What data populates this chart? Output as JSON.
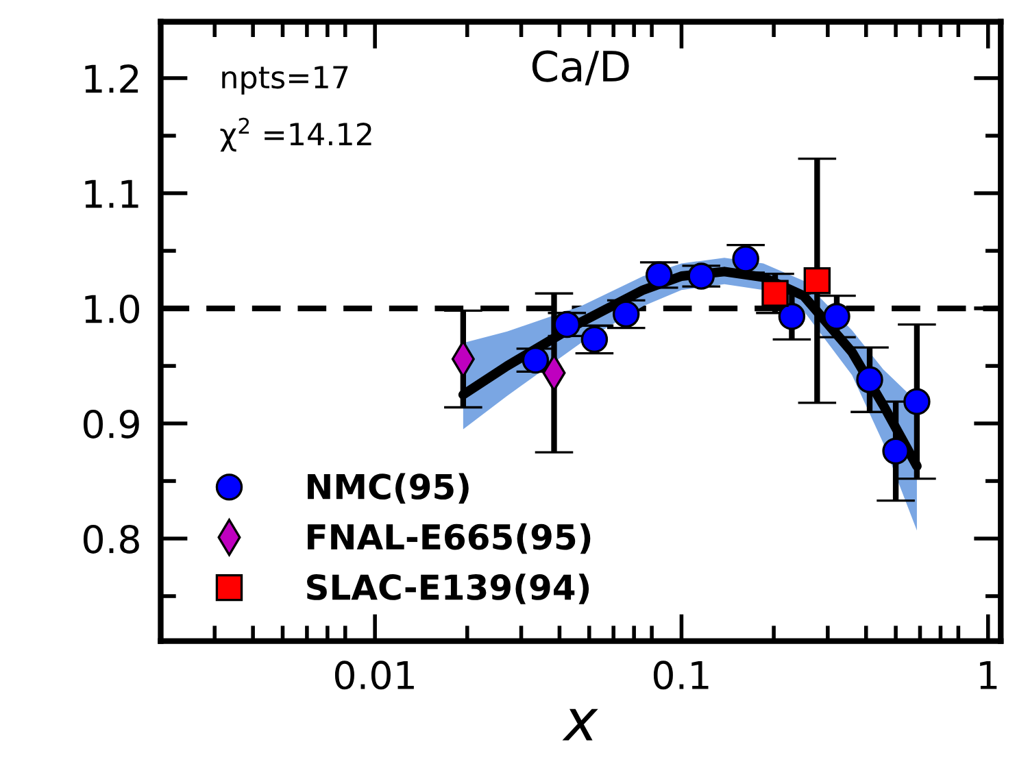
{
  "chart_data": {
    "type": "scatter",
    "title": "Ca/D",
    "xlabel": "x",
    "log": "x",
    "xlim": [
      0.002,
      1.1
    ],
    "xticks": [
      0.01,
      0.1,
      1
    ],
    "ylim": [
      0.711,
      1.249
    ],
    "yticks": [
      0.8,
      0.9,
      {
        "value": 1.0,
        "label": "1.0"
      },
      1.1,
      1.2
    ],
    "grid": false,
    "legend": "bottom left",
    "annotations": [
      "npts=17",
      "χ$^{2}$ =14.12"
    ],
    "ref_lines": [
      {
        "axis": "y",
        "value": 1.0,
        "color": "#000000",
        "line_style": "dashed"
      }
    ],
    "series": [
      {
        "type": "line",
        "color": "#000000",
        "marker": "none",
        "line_style": "solid",
        "x": [
          0.0194,
          0.027,
          0.047,
          0.075,
          0.1,
          0.138,
          0.185,
          0.25,
          0.36,
          0.455,
          0.586
        ],
        "values": [
          0.925,
          0.95,
          0.988,
          1.016,
          1.028,
          1.032,
          1.027,
          1.011,
          0.962,
          0.916,
          0.863
        ],
        "lower": [
          0.895,
          0.924,
          0.97,
          1.002,
          1.016,
          1.021,
          1.016,
          0.998,
          0.942,
          0.883,
          0.807
        ],
        "upper": [
          0.97,
          0.98,
          1.002,
          1.028,
          1.039,
          1.044,
          1.039,
          1.024,
          0.981,
          0.947,
          0.919
        ]
      },
      {
        "name": "NMC(95)",
        "color": "#0000ff",
        "marker": "circle",
        "x": [
          0.0334,
          0.0423,
          0.052,
          0.066,
          0.0845,
          0.116,
          0.162,
          0.229,
          0.321,
          0.411,
          0.5,
          0.586
        ],
        "values": [
          0.955,
          0.986,
          0.973,
          0.995,
          1.029,
          1.028,
          1.043,
          0.993,
          0.993,
          0.938,
          0.876,
          0.919
        ],
        "errors": [
          0.01,
          0.01,
          0.012,
          0.012,
          0.011,
          0.009,
          0.012,
          0.02,
          0.018,
          0.028,
          0.043,
          0.067
        ]
      },
      {
        "name": "FNAL-E665(95)",
        "color": "#bf00bf",
        "marker": "diamond",
        "x": [
          0.0194,
          0.0384
        ],
        "values": [
          0.956,
          0.944
        ],
        "errors": [
          0.042,
          0.069
        ]
      },
      {
        "name": "SLAC-E139(94)",
        "color": "#ff0000",
        "marker": "square",
        "x": [
          0.202,
          0.277
        ],
        "values": [
          1.013,
          1.024
        ],
        "errors": [
          0.017,
          0.106
        ]
      }
    ]
  }
}
